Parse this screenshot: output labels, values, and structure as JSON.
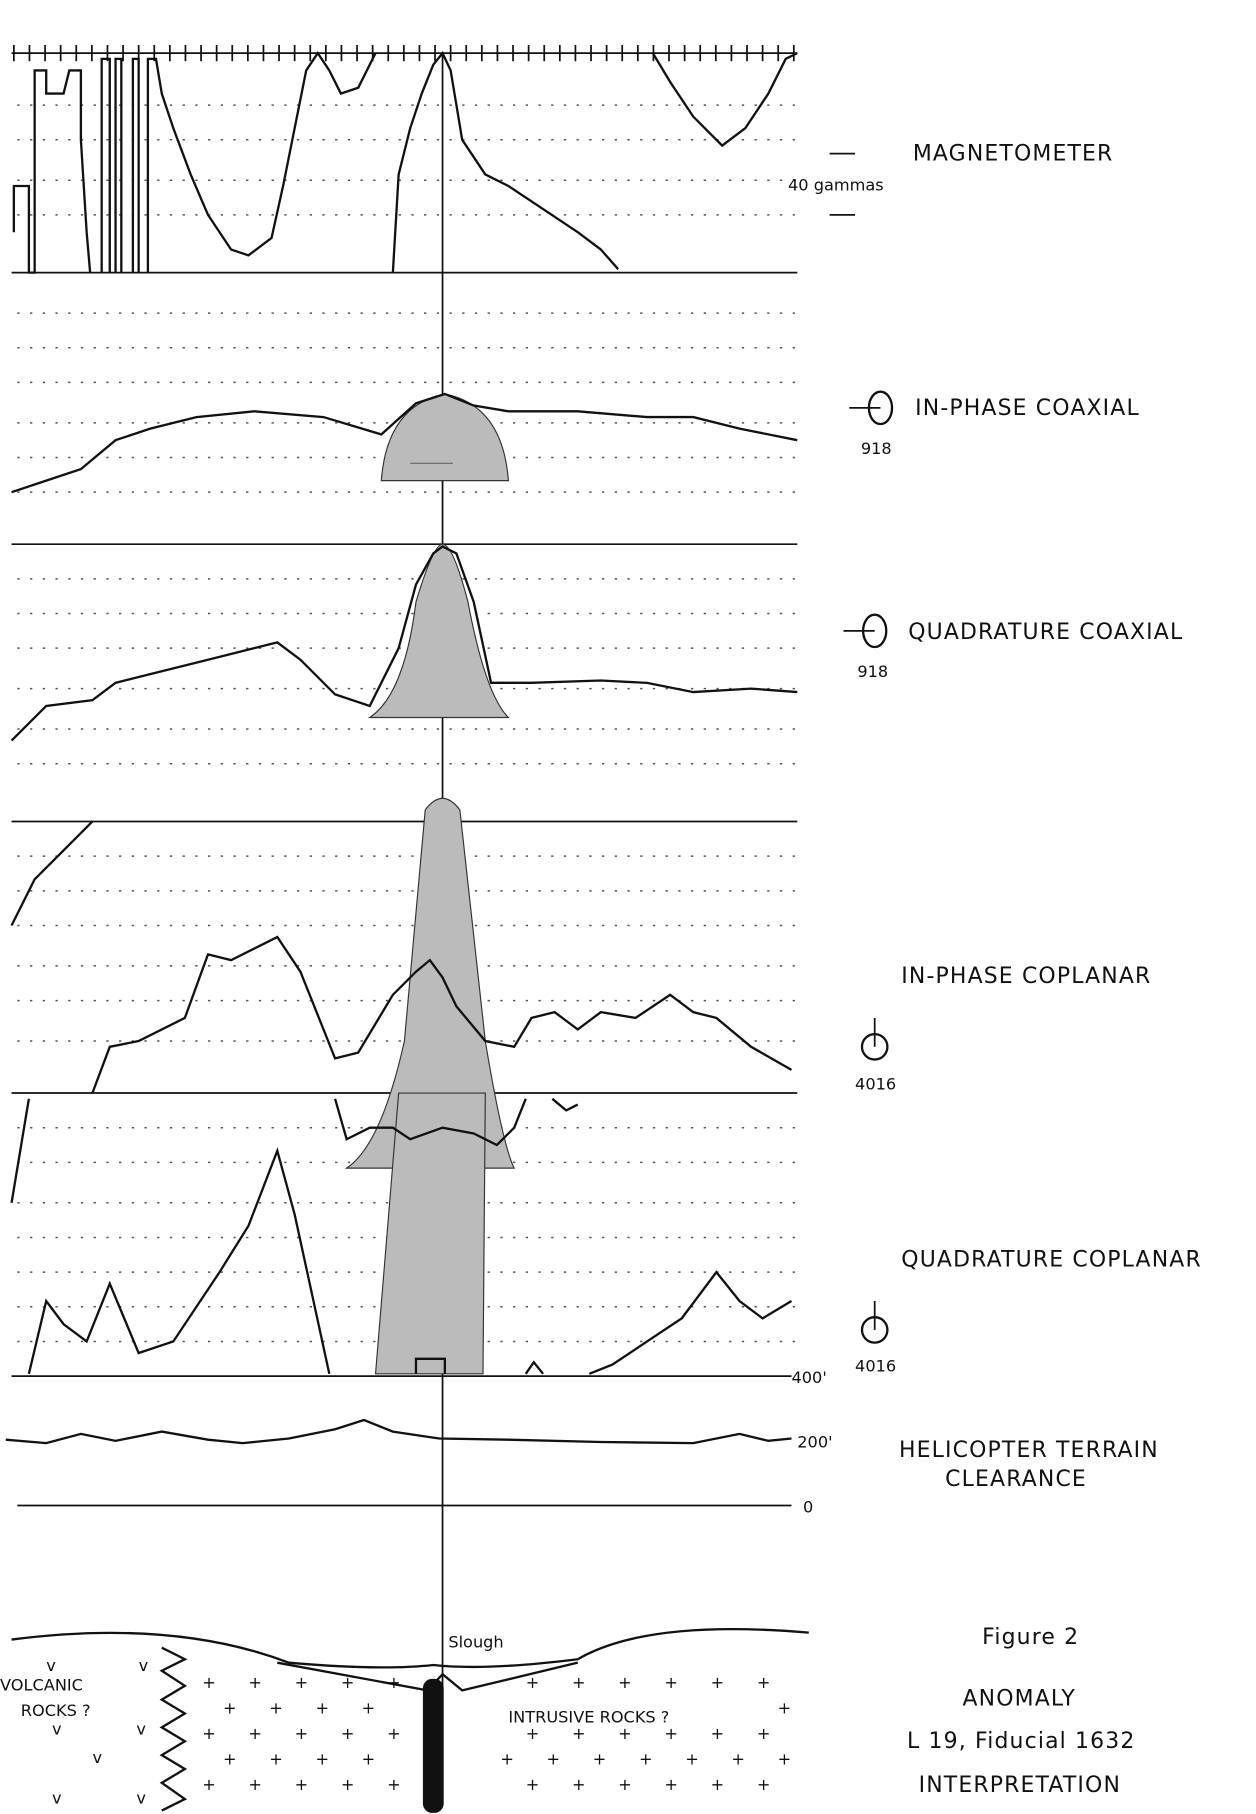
{
  "panels": [
    {
      "label": "MAGNETOMETER",
      "scale": "40 gammas"
    },
    {
      "label": "IN-PHASE COAXIAL",
      "coil": "918"
    },
    {
      "label": "QUADRATURE COAXIAL",
      "coil": "918"
    },
    {
      "label": "IN-PHASE COPLANAR",
      "coil": "4016"
    },
    {
      "label": "QUADRATURE COPLANAR",
      "coil": "4016"
    },
    {
      "label_lines": [
        "HELICOPTER TERRAIN",
        "CLEARANCE"
      ],
      "axis": [
        "400'",
        "200'",
        "0"
      ]
    }
  ],
  "section": {
    "slough": "Slough",
    "volcanic": [
      "VOLCANIC",
      "ROCKS ?"
    ],
    "intrusive": "INTRUSIVE ROCKS ?"
  },
  "caption": {
    "figure": "Figure 2",
    "title": "ANOMALY",
    "line": "L 19, Fiducial 1632",
    "subtitle": "INTERPRETATION"
  }
}
